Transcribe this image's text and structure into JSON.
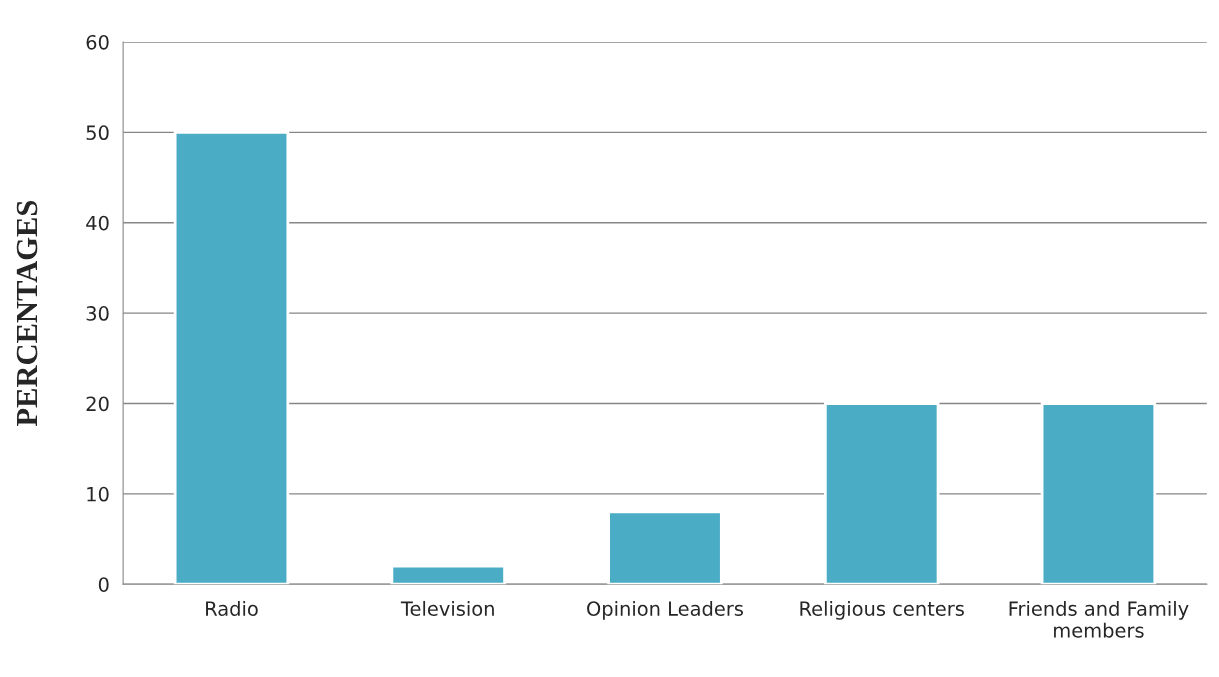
{
  "chart_data": {
    "type": "bar",
    "ylabel": "PERCENTAGES",
    "categories": [
      "Radio",
      "Television",
      "Opinion Leaders",
      "Religious centers",
      "Friends and Family\nmembers"
    ],
    "values": [
      50,
      2,
      8,
      20,
      20
    ],
    "color": "#4bacc6",
    "ylim": [
      0,
      60
    ],
    "yticks": [
      0,
      10,
      20,
      30,
      40,
      50,
      60
    ],
    "grid": "y",
    "legend": false
  }
}
